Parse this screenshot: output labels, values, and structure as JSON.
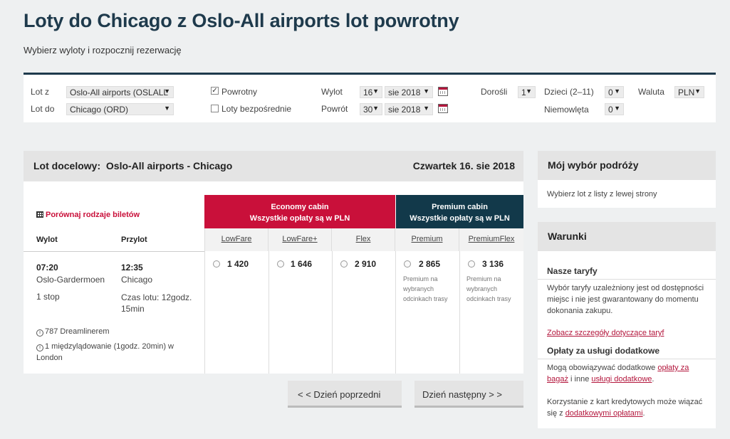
{
  "header": {
    "title": "Loty do Chicago z Oslo-All airports lot powrotny",
    "subtitle": "Wybierz wyloty i rozpocznij rezerwację"
  },
  "search": {
    "from_label": "Lot z",
    "from_value": "Oslo-All airports (OSLALL",
    "to_label": "Lot do",
    "to_value": "Chicago (ORD)",
    "return_label": "Powrotny",
    "return_checked": true,
    "direct_label": "Loty bezpośrednie",
    "direct_checked": false,
    "depart_label": "Wylot",
    "depart_day": "16",
    "depart_month": "sie 2018",
    "return_date_label": "Powrót",
    "return_day": "30",
    "return_month": "sie 2018",
    "adults_label": "Dorośli",
    "adults_value": "1",
    "children_label": "Dzieci (2–11)",
    "children_value": "0",
    "infants_label": "Niemowlęta",
    "infants_value": "0",
    "currency_label": "Waluta",
    "currency_value": "PLN"
  },
  "results": {
    "route_prefix": "Lot docelowy:",
    "route": "Oslo-All airports - Chicago",
    "date": "Czwartek 16. sie 2018",
    "compare_link": "Porównaj rodzaje biletów",
    "col_depart": "Wylot",
    "col_arrive": "Przylot",
    "economy": {
      "title": "Economy cabin",
      "note": "Wszystkie opłaty są w PLN"
    },
    "premium": {
      "title": "Premium cabin",
      "note": "Wszystkie opłaty są w PLN"
    },
    "fares": [
      {
        "name": "LowFare",
        "price": "1 420"
      },
      {
        "name": "LowFare+",
        "price": "1 646"
      },
      {
        "name": "Flex",
        "price": "2 910"
      },
      {
        "name": "Premium",
        "price": "2 865",
        "note": "Premium na wybranych odcinkach trasy"
      },
      {
        "name": "PremiumFlex",
        "price": "3 136",
        "note": "Premium na wybranych odcinkach trasy"
      }
    ],
    "flight": {
      "dep_time": "07:20",
      "dep_airport": "Oslo-Gardermoen",
      "stops": "1 stop",
      "arr_time": "12:35",
      "arr_airport": "Chicago",
      "duration": "Czas lotu: 12godz. 15min",
      "aircraft": "787 Dreamlinerem",
      "layover": "1 międzylądowanie (1godz. 20min) w London"
    },
    "prev_day": "< < Dzień poprzedni",
    "next_day": "Dzień następny > >"
  },
  "sidebar": {
    "choice_title": "Mój wybór podróży",
    "choice_text": "Wybierz lot z listy z lewej strony",
    "terms_title": "Warunki",
    "tariffs_title": "Nasze taryfy",
    "tariffs_text": "Wybór taryfy uzależniony jest od dostępności miejsc i nie jest gwarantowany do momentu dokonania zakupu.",
    "tariffs_link": "Zobacz szczegóły dotyczące taryf",
    "fees_title": "Opłaty za usługi dodatkowe",
    "fees_text_1": "Mogą obowiązywać dodatkowe",
    "fees_link_1": "opłaty za bagaż",
    "fees_text_2": "i inne",
    "fees_link_2": "usługi dodatkowe",
    "fees_text_3": ".",
    "card_text": "Korzystanie z kart kredytowych może wiązać się z",
    "card_link": "dodatkowymi opłatami",
    "card_end": "."
  }
}
